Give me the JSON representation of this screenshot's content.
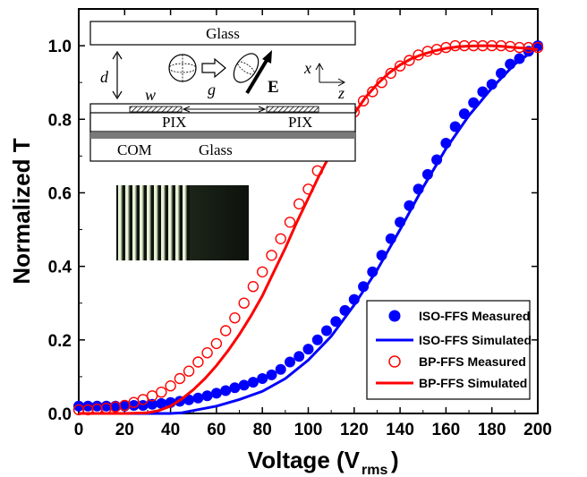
{
  "chart_data": {
    "type": "scatter",
    "xlabel": "Voltage (V",
    "xlabel_sub": "rms",
    "xlabel_close": ")",
    "ylabel": "Normalized T",
    "xlim": [
      0,
      200
    ],
    "ylim": [
      0,
      1.1
    ],
    "x_ticks": [
      0,
      20,
      40,
      60,
      80,
      100,
      120,
      140,
      160,
      180,
      200
    ],
    "y_ticks": [
      0.0,
      0.2,
      0.4,
      0.6,
      0.8,
      1.0
    ],
    "y_tick_labels": [
      "0.0",
      "0.2",
      "0.4",
      "0.6",
      "0.8",
      "1.0"
    ],
    "legend_position": "bottom-right",
    "series": [
      {
        "name": "ISO-FFS Measured",
        "kind": "marker-filled",
        "color": "#0000ff",
        "x": [
          0,
          4,
          8,
          12,
          16,
          20,
          24,
          28,
          32,
          36,
          40,
          44,
          48,
          52,
          56,
          60,
          64,
          68,
          72,
          76,
          80,
          84,
          88,
          92,
          96,
          100,
          104,
          108,
          112,
          116,
          120,
          124,
          128,
          132,
          136,
          140,
          144,
          148,
          152,
          156,
          160,
          164,
          168,
          172,
          176,
          180,
          184,
          188,
          192,
          196,
          200
        ],
        "y": [
          0.02,
          0.02,
          0.02,
          0.02,
          0.02,
          0.02,
          0.022,
          0.022,
          0.025,
          0.027,
          0.03,
          0.033,
          0.037,
          0.042,
          0.048,
          0.055,
          0.062,
          0.07,
          0.077,
          0.085,
          0.095,
          0.105,
          0.12,
          0.14,
          0.155,
          0.175,
          0.2,
          0.225,
          0.25,
          0.28,
          0.31,
          0.345,
          0.385,
          0.43,
          0.475,
          0.52,
          0.565,
          0.61,
          0.65,
          0.69,
          0.735,
          0.78,
          0.815,
          0.845,
          0.875,
          0.895,
          0.925,
          0.95,
          0.965,
          0.985,
          1.0
        ]
      },
      {
        "name": "ISO-FFS Simulated",
        "kind": "line",
        "color": "#0000ff",
        "x": [
          0,
          20,
          30,
          40,
          45,
          50,
          60,
          70,
          80,
          90,
          100,
          110,
          120,
          130,
          140,
          150,
          160,
          170,
          180,
          190,
          200
        ],
        "y": [
          0.0,
          0.0,
          0.0,
          0.0,
          0.002,
          0.008,
          0.02,
          0.038,
          0.06,
          0.095,
          0.145,
          0.21,
          0.295,
          0.39,
          0.5,
          0.615,
          0.72,
          0.81,
          0.885,
          0.95,
          0.995
        ]
      },
      {
        "name": "BP-FFS Measured",
        "kind": "marker-open",
        "color": "#ff0000",
        "x": [
          0,
          4,
          8,
          12,
          16,
          20,
          24,
          28,
          32,
          36,
          40,
          44,
          48,
          52,
          56,
          60,
          64,
          68,
          72,
          76,
          80,
          84,
          88,
          92,
          96,
          100,
          104,
          108,
          112,
          116,
          120,
          124,
          128,
          132,
          136,
          140,
          144,
          148,
          152,
          156,
          160,
          164,
          168,
          172,
          176,
          180,
          184,
          188,
          192,
          196,
          200
        ],
        "y": [
          0.01,
          0.01,
          0.012,
          0.014,
          0.018,
          0.022,
          0.03,
          0.038,
          0.048,
          0.058,
          0.075,
          0.095,
          0.115,
          0.14,
          0.165,
          0.19,
          0.225,
          0.26,
          0.3,
          0.345,
          0.385,
          0.43,
          0.475,
          0.52,
          0.57,
          0.61,
          0.66,
          0.7,
          0.75,
          0.79,
          0.82,
          0.85,
          0.875,
          0.9,
          0.925,
          0.945,
          0.96,
          0.975,
          0.985,
          0.99,
          0.995,
          1.0,
          1.0,
          1.0,
          1.0,
          1.0,
          1.0,
          0.998,
          0.995,
          0.995,
          0.995
        ]
      },
      {
        "name": "BP-FFS Simulated",
        "kind": "line",
        "color": "#ff0000",
        "x": [
          0,
          20,
          30,
          35,
          40,
          45,
          50,
          55,
          60,
          65,
          70,
          75,
          80,
          85,
          90,
          95,
          100,
          105,
          110,
          115,
          120,
          125,
          130,
          135,
          140,
          145,
          150,
          155,
          160,
          165,
          170,
          175,
          180,
          185,
          190,
          195,
          200
        ],
        "y": [
          0.0,
          0.0,
          0.002,
          0.008,
          0.02,
          0.04,
          0.065,
          0.095,
          0.13,
          0.17,
          0.215,
          0.265,
          0.32,
          0.385,
          0.45,
          0.52,
          0.585,
          0.65,
          0.71,
          0.765,
          0.815,
          0.86,
          0.895,
          0.925,
          0.948,
          0.965,
          0.977,
          0.986,
          0.993,
          0.997,
          0.999,
          1.0,
          1.0,
          0.998,
          0.995,
          0.993,
          0.99
        ]
      }
    ]
  },
  "inset": {
    "top_glass_label": "Glass",
    "d_label": "d",
    "w_label": "w",
    "g_label": "g",
    "e_label": "E",
    "x_axis_label": "x",
    "z_axis_label": "z",
    "pix_left_label": "PIX",
    "pix_right_label": "PIX",
    "com_label": "COM",
    "bottom_glass_label": "Glass"
  }
}
